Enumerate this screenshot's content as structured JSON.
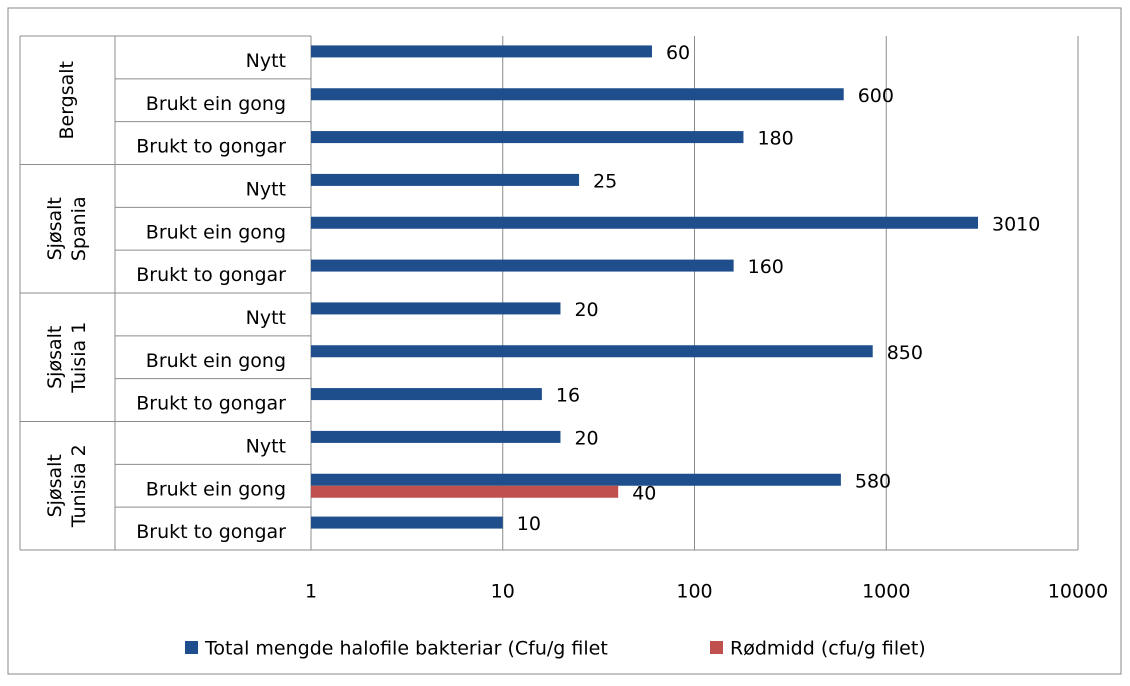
{
  "chart_data": {
    "type": "bar",
    "orientation": "horizontal",
    "log_scale": true,
    "grid": true,
    "legend": "bottom",
    "groups": [
      {
        "lines": [
          "Bergsalt"
        ],
        "size": 3
      },
      {
        "lines": [
          "Sjøsalt",
          "Spania"
        ],
        "size": 3
      },
      {
        "lines": [
          "Sjøsalt",
          "Tuisia 1"
        ],
        "size": 3
      },
      {
        "lines": [
          "Sjøsalt",
          "Tunisia 2"
        ],
        "size": 3
      }
    ],
    "categories": [
      "Nytt",
      "Brukt ein gong",
      "Brukt to gongar",
      "Nytt",
      "Brukt ein gong",
      "Brukt to gongar",
      "Nytt",
      "Brukt ein gong",
      "Brukt to gongar",
      "Nytt",
      "Brukt ein gong",
      "Brukt to gongar"
    ],
    "series": [
      {
        "name": "Total mengde halofile bakteriar (Cfu/g filet",
        "color": "#1f4e8c",
        "values": [
          60,
          600,
          180,
          25,
          3010,
          160,
          20,
          850,
          16,
          20,
          580,
          10
        ]
      },
      {
        "name": "Rødmidd (cfu/g filet)",
        "color": "#c0504d",
        "values": [
          null,
          null,
          null,
          null,
          null,
          null,
          null,
          null,
          null,
          null,
          40,
          null
        ]
      }
    ],
    "xlim": [
      1,
      10000
    ],
    "xticks": [
      1,
      10,
      100,
      1000,
      10000
    ]
  }
}
